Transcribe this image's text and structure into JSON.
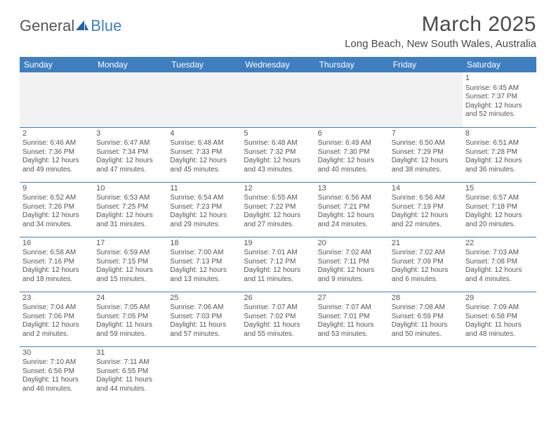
{
  "logo": {
    "part1": "General",
    "part2": "Blue",
    "sail_color": "#1f62a8"
  },
  "title": "March 2025",
  "location": "Long Beach, New South Wales, Australia",
  "colors": {
    "header_bg": "#3f7fc0",
    "header_fg": "#ffffff",
    "rule": "#3f7fc0",
    "text": "#555555"
  },
  "day_headers": [
    "Sunday",
    "Monday",
    "Tuesday",
    "Wednesday",
    "Thursday",
    "Friday",
    "Saturday"
  ],
  "weeks": [
    [
      null,
      null,
      null,
      null,
      null,
      null,
      {
        "n": "1",
        "sr": "Sunrise: 6:45 AM",
        "ss": "Sunset: 7:37 PM",
        "d1": "Daylight: 12 hours",
        "d2": "and 52 minutes."
      }
    ],
    [
      {
        "n": "2",
        "sr": "Sunrise: 6:46 AM",
        "ss": "Sunset: 7:36 PM",
        "d1": "Daylight: 12 hours",
        "d2": "and 49 minutes."
      },
      {
        "n": "3",
        "sr": "Sunrise: 6:47 AM",
        "ss": "Sunset: 7:34 PM",
        "d1": "Daylight: 12 hours",
        "d2": "and 47 minutes."
      },
      {
        "n": "4",
        "sr": "Sunrise: 6:48 AM",
        "ss": "Sunset: 7:33 PM",
        "d1": "Daylight: 12 hours",
        "d2": "and 45 minutes."
      },
      {
        "n": "5",
        "sr": "Sunrise: 6:48 AM",
        "ss": "Sunset: 7:32 PM",
        "d1": "Daylight: 12 hours",
        "d2": "and 43 minutes."
      },
      {
        "n": "6",
        "sr": "Sunrise: 6:49 AM",
        "ss": "Sunset: 7:30 PM",
        "d1": "Daylight: 12 hours",
        "d2": "and 40 minutes."
      },
      {
        "n": "7",
        "sr": "Sunrise: 6:50 AM",
        "ss": "Sunset: 7:29 PM",
        "d1": "Daylight: 12 hours",
        "d2": "and 38 minutes."
      },
      {
        "n": "8",
        "sr": "Sunrise: 6:51 AM",
        "ss": "Sunset: 7:28 PM",
        "d1": "Daylight: 12 hours",
        "d2": "and 36 minutes."
      }
    ],
    [
      {
        "n": "9",
        "sr": "Sunrise: 6:52 AM",
        "ss": "Sunset: 7:26 PM",
        "d1": "Daylight: 12 hours",
        "d2": "and 34 minutes."
      },
      {
        "n": "10",
        "sr": "Sunrise: 6:53 AM",
        "ss": "Sunset: 7:25 PM",
        "d1": "Daylight: 12 hours",
        "d2": "and 31 minutes."
      },
      {
        "n": "11",
        "sr": "Sunrise: 6:54 AM",
        "ss": "Sunset: 7:23 PM",
        "d1": "Daylight: 12 hours",
        "d2": "and 29 minutes."
      },
      {
        "n": "12",
        "sr": "Sunrise: 6:55 AM",
        "ss": "Sunset: 7:22 PM",
        "d1": "Daylight: 12 hours",
        "d2": "and 27 minutes."
      },
      {
        "n": "13",
        "sr": "Sunrise: 6:56 AM",
        "ss": "Sunset: 7:21 PM",
        "d1": "Daylight: 12 hours",
        "d2": "and 24 minutes."
      },
      {
        "n": "14",
        "sr": "Sunrise: 6:56 AM",
        "ss": "Sunset: 7:19 PM",
        "d1": "Daylight: 12 hours",
        "d2": "and 22 minutes."
      },
      {
        "n": "15",
        "sr": "Sunrise: 6:57 AM",
        "ss": "Sunset: 7:18 PM",
        "d1": "Daylight: 12 hours",
        "d2": "and 20 minutes."
      }
    ],
    [
      {
        "n": "16",
        "sr": "Sunrise: 6:58 AM",
        "ss": "Sunset: 7:16 PM",
        "d1": "Daylight: 12 hours",
        "d2": "and 18 minutes."
      },
      {
        "n": "17",
        "sr": "Sunrise: 6:59 AM",
        "ss": "Sunset: 7:15 PM",
        "d1": "Daylight: 12 hours",
        "d2": "and 15 minutes."
      },
      {
        "n": "18",
        "sr": "Sunrise: 7:00 AM",
        "ss": "Sunset: 7:13 PM",
        "d1": "Daylight: 12 hours",
        "d2": "and 13 minutes."
      },
      {
        "n": "19",
        "sr": "Sunrise: 7:01 AM",
        "ss": "Sunset: 7:12 PM",
        "d1": "Daylight: 12 hours",
        "d2": "and 11 minutes."
      },
      {
        "n": "20",
        "sr": "Sunrise: 7:02 AM",
        "ss": "Sunset: 7:11 PM",
        "d1": "Daylight: 12 hours",
        "d2": "and 9 minutes."
      },
      {
        "n": "21",
        "sr": "Sunrise: 7:02 AM",
        "ss": "Sunset: 7:09 PM",
        "d1": "Daylight: 12 hours",
        "d2": "and 6 minutes."
      },
      {
        "n": "22",
        "sr": "Sunrise: 7:03 AM",
        "ss": "Sunset: 7:08 PM",
        "d1": "Daylight: 12 hours",
        "d2": "and 4 minutes."
      }
    ],
    [
      {
        "n": "23",
        "sr": "Sunrise: 7:04 AM",
        "ss": "Sunset: 7:06 PM",
        "d1": "Daylight: 12 hours",
        "d2": "and 2 minutes."
      },
      {
        "n": "24",
        "sr": "Sunrise: 7:05 AM",
        "ss": "Sunset: 7:05 PM",
        "d1": "Daylight: 11 hours",
        "d2": "and 59 minutes."
      },
      {
        "n": "25",
        "sr": "Sunrise: 7:06 AM",
        "ss": "Sunset: 7:03 PM",
        "d1": "Daylight: 11 hours",
        "d2": "and 57 minutes."
      },
      {
        "n": "26",
        "sr": "Sunrise: 7:07 AM",
        "ss": "Sunset: 7:02 PM",
        "d1": "Daylight: 11 hours",
        "d2": "and 55 minutes."
      },
      {
        "n": "27",
        "sr": "Sunrise: 7:07 AM",
        "ss": "Sunset: 7:01 PM",
        "d1": "Daylight: 11 hours",
        "d2": "and 53 minutes."
      },
      {
        "n": "28",
        "sr": "Sunrise: 7:08 AM",
        "ss": "Sunset: 6:59 PM",
        "d1": "Daylight: 11 hours",
        "d2": "and 50 minutes."
      },
      {
        "n": "29",
        "sr": "Sunrise: 7:09 AM",
        "ss": "Sunset: 6:58 PM",
        "d1": "Daylight: 11 hours",
        "d2": "and 48 minutes."
      }
    ],
    [
      {
        "n": "30",
        "sr": "Sunrise: 7:10 AM",
        "ss": "Sunset: 6:56 PM",
        "d1": "Daylight: 11 hours",
        "d2": "and 46 minutes."
      },
      {
        "n": "31",
        "sr": "Sunrise: 7:11 AM",
        "ss": "Sunset: 6:55 PM",
        "d1": "Daylight: 11 hours",
        "d2": "and 44 minutes."
      },
      null,
      null,
      null,
      null,
      null
    ]
  ]
}
